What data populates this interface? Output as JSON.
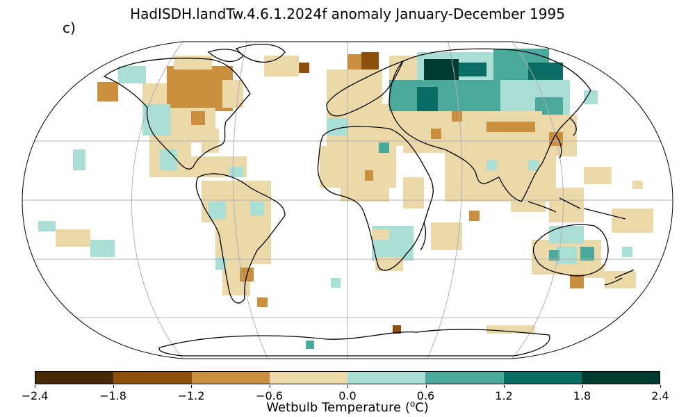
{
  "title": "HadISDH.landTw.4.6.1.2024f anomaly January-December 1995",
  "panel_label": "c)",
  "colorbar": {
    "label_prefix": "Wetbulb Temperature (",
    "label_unit": "o",
    "label_suffix": "C)",
    "ticks": [
      "−2.4",
      "−1.8",
      "−1.2",
      "−0.6",
      "0.0",
      "0.6",
      "1.2",
      "1.8",
      "2.4"
    ],
    "bins": [
      {
        "range": [
          -2.4,
          -1.8
        ],
        "color": "#4a2a05"
      },
      {
        "range": [
          -1.8,
          -1.2
        ],
        "color": "#8d510b"
      },
      {
        "range": [
          -1.2,
          -0.6
        ],
        "color": "#c98f3f"
      },
      {
        "range": [
          -0.6,
          0.0
        ],
        "color": "#ecd9a9"
      },
      {
        "range": [
          0.0,
          0.6
        ],
        "color": "#aadfd6"
      },
      {
        "range": [
          0.6,
          1.2
        ],
        "color": "#4ba99c"
      },
      {
        "range": [
          1.2,
          1.8
        ],
        "color": "#0b6e64"
      },
      {
        "range": [
          1.8,
          2.4
        ],
        "color": "#003b30"
      }
    ]
  },
  "map": {
    "projection": "Robinson",
    "graticule": true,
    "coastlines": true
  }
}
